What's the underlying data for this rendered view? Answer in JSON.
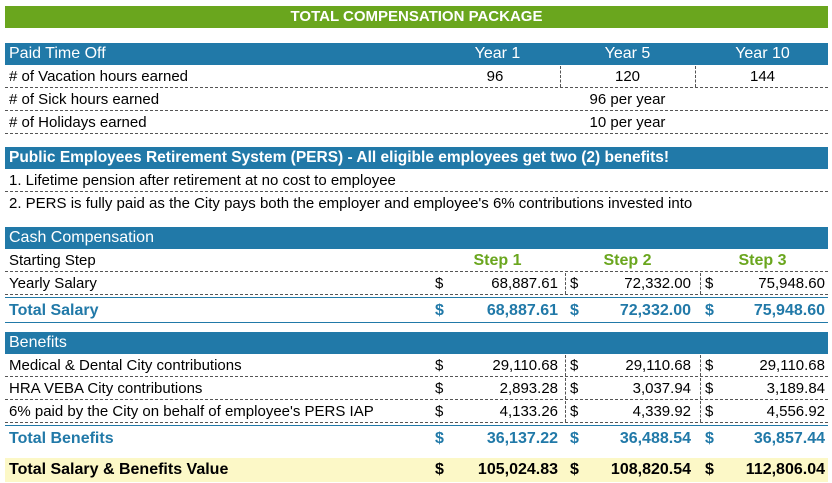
{
  "title": "TOTAL COMPENSATION PACKAGE",
  "pto": {
    "header": "Paid Time Off",
    "columns": [
      "Year 1",
      "Year 5",
      "Year 10"
    ],
    "vacation": {
      "label": "# of Vacation hours earned",
      "values": [
        "96",
        "120",
        "144"
      ]
    },
    "sick": {
      "label": "# of Sick hours earned",
      "value": "96 per year"
    },
    "holidays": {
      "label": "# of Holidays earned",
      "value": "10 per year"
    }
  },
  "pers": {
    "header": "Public Employees Retirement System (PERS) - All eligible employees get two (2) benefits!",
    "items": [
      "1. Lifetime pension after retirement at no cost to employee",
      "2.  PERS is fully paid as the City pays both the employer and employee's 6% contributions invested into"
    ]
  },
  "cash": {
    "header": "Cash Compensation",
    "starting_label": "Starting Step",
    "steps": [
      "Step 1",
      "Step 2",
      "Step 3"
    ],
    "currency": "$",
    "yearly": {
      "label": "Yearly Salary",
      "values": [
        "68,887.61",
        "72,332.00",
        "75,948.60"
      ]
    },
    "total": {
      "label": "Total Salary",
      "values": [
        "68,887.61",
        "72,332.00",
        "75,948.60"
      ]
    }
  },
  "benefits": {
    "header": "Benefits",
    "rows": [
      {
        "label": "Medical & Dental City contributions",
        "values": [
          "29,110.68",
          "29,110.68",
          "29,110.68"
        ]
      },
      {
        "label": "HRA VEBA City contributions",
        "values": [
          "2,893.28",
          "3,037.94",
          "3,189.84"
        ]
      },
      {
        "label": "6% paid by the City on behalf of employee's PERS IAP",
        "values": [
          "4,133.26",
          "4,339.92",
          "4,556.92"
        ]
      }
    ],
    "total": {
      "label": "Total Benefits",
      "values": [
        "36,137.22",
        "36,488.54",
        "36,857.44"
      ]
    }
  },
  "grand": {
    "label": "Total Salary & Benefits Value",
    "values": [
      "105,024.83",
      "108,820.54",
      "112,806.04"
    ]
  },
  "colors": {
    "green": "#6aa61e",
    "blue": "#2179a8",
    "highlight": "#fcf8c7"
  }
}
